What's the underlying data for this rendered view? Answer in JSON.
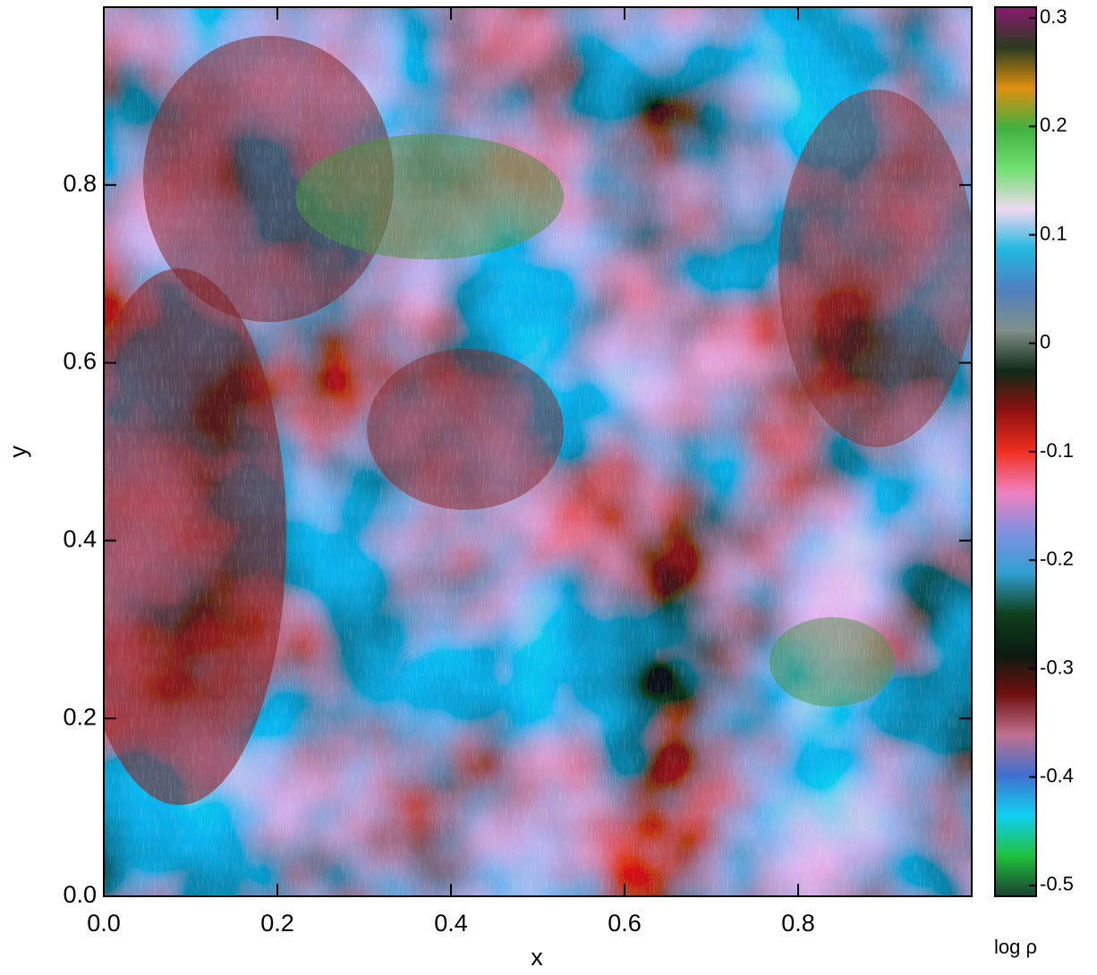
{
  "chart_data": {
    "type": "heatmap",
    "xlabel": "x",
    "ylabel": "y",
    "colorbar_label": "log ρ",
    "xlim": [
      0,
      1
    ],
    "ylim": [
      0,
      1
    ],
    "xticks": [
      {
        "value": 0,
        "label": "0.0"
      },
      0.2,
      0.4,
      0.6,
      0.8
    ],
    "yticks": [
      {
        "value": 0,
        "label": "0.0"
      },
      0.2,
      0.4,
      0.6,
      0.8
    ],
    "clim": [
      -0.51,
      0.31
    ],
    "cticks": [
      0.3,
      0.2,
      0.1,
      0,
      -0.1,
      -0.2,
      -0.3,
      -0.4,
      -0.5
    ],
    "colorbar_colors": [
      "#8a1a6e",
      "#2a3a20",
      "#e09010",
      "#40b040",
      "#70e070",
      "#f0d8f0",
      "#20b8e0",
      "#5080c0",
      "#809088",
      "#102a18",
      "#901010",
      "#f03020",
      "#f080c0",
      "#8090e0",
      "#30a0d0",
      "#104020",
      "#0a1a10",
      "#701010",
      "#c07090",
      "#4070d0",
      "#10d0f0",
      "#20c040",
      "#1a4030"
    ]
  }
}
